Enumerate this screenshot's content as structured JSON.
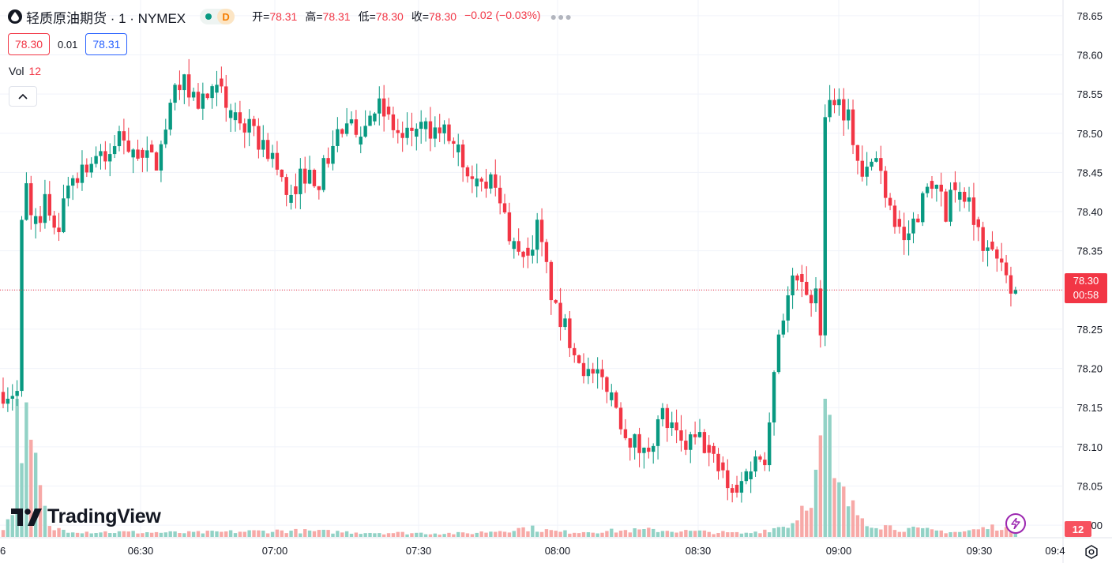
{
  "header": {
    "symbol": "轻质原油期货 · 1 · NYMEX",
    "delay_badge": "D",
    "ohlc": [
      {
        "label": "开=",
        "value": "78.31"
      },
      {
        "label": "高=",
        "value": "78.31"
      },
      {
        "label": "低=",
        "value": "78.30"
      },
      {
        "label": "收=",
        "value": "78.30"
      }
    ],
    "change": "−0.02 (−0.03%)"
  },
  "quote": {
    "sell": "78.30",
    "spread": "0.01",
    "buy": "78.31"
  },
  "volume_legend": {
    "label": "Vol",
    "value": "12"
  },
  "logo_text": "TradingView",
  "price_tag": {
    "price": "78.30",
    "countdown": "00:58"
  },
  "vol_tag": "12",
  "colors": {
    "up": "#089981",
    "down": "#f23645",
    "up_vol": "#92d2c6",
    "down_vol": "#f7a9a7",
    "grid": "#f0f3fa",
    "axis_text": "#131722"
  },
  "chart_data": {
    "type": "candlestick",
    "x_axis": {
      "tick_labels": [
        "6",
        "06:30",
        "07:00",
        "07:30",
        "08:00",
        "08:30",
        "09:00",
        "09:30",
        "09:4"
      ]
    },
    "y_axis": {
      "tick_labels": [
        "78.65",
        "78.60",
        "78.55",
        "78.50",
        "78.45",
        "78.40",
        "78.35",
        "78.30",
        "78.25",
        "78.20",
        "78.15",
        "78.10",
        "78.05",
        "78.00"
      ],
      "range": [
        77.985,
        78.67
      ]
    },
    "last_price": 78.3,
    "close_path": [
      [
        0,
        78.17
      ],
      [
        3,
        78.17
      ],
      [
        4,
        78.38
      ],
      [
        5,
        78.43
      ],
      [
        6,
        78.39
      ],
      [
        8,
        78.38
      ],
      [
        9,
        78.41
      ],
      [
        12,
        78.38
      ],
      [
        14,
        78.44
      ],
      [
        20,
        78.47
      ],
      [
        22,
        78.46
      ],
      [
        25,
        78.5
      ],
      [
        30,
        78.47
      ],
      [
        33,
        78.46
      ],
      [
        37,
        78.55
      ],
      [
        38,
        78.57
      ],
      [
        42,
        78.54
      ],
      [
        46,
        78.55
      ],
      [
        48,
        78.54
      ],
      [
        52,
        78.51
      ],
      [
        58,
        78.47
      ],
      [
        61,
        78.42
      ],
      [
        65,
        78.45
      ],
      [
        68,
        78.44
      ],
      [
        72,
        78.5
      ],
      [
        78,
        78.51
      ],
      [
        80,
        78.54
      ],
      [
        86,
        78.49
      ],
      [
        89,
        78.51
      ],
      [
        95,
        78.5
      ],
      [
        100,
        78.46
      ],
      [
        105,
        78.44
      ],
      [
        110,
        78.36
      ],
      [
        112,
        78.33
      ],
      [
        115,
        78.38
      ],
      [
        119,
        78.27
      ],
      [
        122,
        78.24
      ],
      [
        126,
        78.19
      ],
      [
        130,
        78.18
      ],
      [
        134,
        78.12
      ],
      [
        138,
        78.09
      ],
      [
        142,
        78.14
      ],
      [
        146,
        78.1
      ],
      [
        150,
        78.11
      ],
      [
        154,
        78.07
      ],
      [
        158,
        78.04
      ],
      [
        161,
        78.08
      ],
      [
        164,
        78.09
      ],
      [
        167,
        78.25
      ],
      [
        170,
        78.31
      ],
      [
        173,
        78.3
      ],
      [
        175,
        78.29
      ],
      [
        176,
        78.25
      ],
      [
        177,
        78.53
      ],
      [
        179,
        78.55
      ],
      [
        182,
        78.52
      ],
      [
        185,
        78.44
      ],
      [
        188,
        78.47
      ],
      [
        191,
        78.41
      ],
      [
        194,
        78.36
      ],
      [
        197,
        78.4
      ],
      [
        200,
        78.44
      ],
      [
        203,
        78.4
      ],
      [
        206,
        78.44
      ],
      [
        208,
        78.41
      ],
      [
        211,
        78.36
      ],
      [
        214,
        78.35
      ],
      [
        216,
        78.33
      ],
      [
        217,
        78.31
      ],
      [
        218,
        78.3
      ]
    ],
    "volume_range": [
      0,
      400
    ],
    "volume_path": [
      [
        0,
        18
      ],
      [
        2,
        90
      ],
      [
        3,
        400
      ],
      [
        10,
        25
      ],
      [
        18,
        15
      ],
      [
        40,
        12
      ],
      [
        60,
        18
      ],
      [
        82,
        12
      ],
      [
        100,
        10
      ],
      [
        113,
        26
      ],
      [
        120,
        14
      ],
      [
        140,
        20
      ],
      [
        160,
        10
      ],
      [
        166,
        25
      ],
      [
        170,
        40
      ],
      [
        175,
        160
      ],
      [
        177,
        400
      ],
      [
        179,
        150
      ],
      [
        183,
        80
      ],
      [
        187,
        40
      ],
      [
        193,
        24
      ],
      [
        206,
        14
      ],
      [
        215,
        32
      ],
      [
        218,
        12
      ]
    ]
  }
}
